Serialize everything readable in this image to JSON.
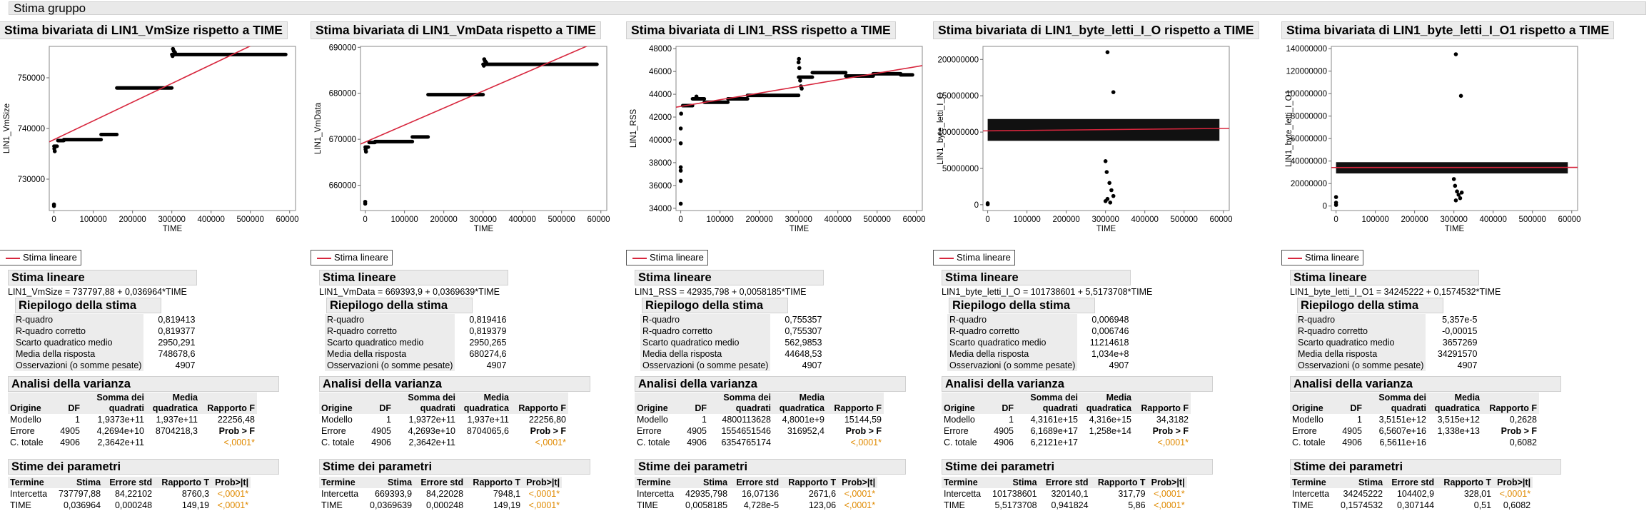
{
  "group_title": "Stima gruppo",
  "colors": {
    "fit_line": "#d7263d",
    "prob": "#e08a00",
    "header_bg": "#ececec"
  },
  "panels": [
    {
      "title": "Stima bivariata di LIN1_VmSize rispetto a TIME",
      "legend_label": "Stima lineare",
      "fit_section": "Stima lineare",
      "equation": "LIN1_VmSize = 737797,88 + 0,036964*TIME",
      "summary_title": "Riepilogo della stima",
      "summary": [
        {
          "label": "R-quadro",
          "value": "0,819413"
        },
        {
          "label": "R-quadro corretto",
          "value": "0,819377"
        },
        {
          "label": "Scarto quadratico medio",
          "value": "2950,291"
        },
        {
          "label": "Media della risposta",
          "value": "748678,6"
        },
        {
          "label": "Osservazioni (o somme pesate)",
          "value": "4907"
        }
      ],
      "anova_title": "Analisi della varianza",
      "anova_header": [
        "Origine",
        "DF",
        "Somma dei quadrati",
        "Media quadratica",
        "Rapporto F"
      ],
      "anova_rows": [
        [
          "Modello",
          "1",
          "1,9373e+11",
          "1,937e+11",
          "22256,48"
        ],
        [
          "Errore",
          "4905",
          "4,2694e+10",
          "8704218,3",
          "Prob > F"
        ],
        [
          "C. totale",
          "4906",
          "2,3642e+11",
          "",
          "<,0001*"
        ]
      ],
      "params_title": "Stime dei parametri",
      "params_header": [
        "Termine",
        "Stima",
        "Errore std",
        "Rapporto T",
        "Prob>|t|"
      ],
      "params_rows": [
        [
          "Intercetta",
          "737797,88",
          "84,22102",
          "8760,3",
          "<,0001*"
        ],
        [
          "TIME",
          "0,036964",
          "0,000248",
          "149,19",
          "<,0001*"
        ]
      ],
      "chart_data": {
        "type": "scatter",
        "xlabel": "TIME",
        "ylabel": "LIN1_VmSize",
        "xlim": [
          -12000,
          615000
        ],
        "ylim": [
          723800,
          756200
        ],
        "xticks": [
          0,
          100000,
          200000,
          300000,
          400000,
          500000,
          600000
        ],
        "yticks": [
          730000,
          740000,
          750000
        ],
        "ytick_labels": [
          "730000",
          "740000",
          "750000"
        ],
        "segments": [
          {
            "x0": 0,
            "x1": 8000,
            "y": 736500
          },
          {
            "x0": 10000,
            "x1": 25000,
            "y": 737600
          },
          {
            "x0": 25000,
            "x1": 120000,
            "y": 737800
          },
          {
            "x0": 120000,
            "x1": 160000,
            "y": 738800
          },
          {
            "x0": 160000,
            "x1": 300000,
            "y": 748000
          },
          {
            "x0": 300000,
            "x1": 590000,
            "y": 754600
          }
        ],
        "points": [
          [
            0,
            725000
          ],
          [
            0,
            724700
          ],
          [
            2000,
            735500
          ],
          [
            1000,
            736000
          ],
          [
            303000,
            755700
          ],
          [
            305000,
            755300
          ],
          [
            308000,
            755000
          ],
          [
            302000,
            754300
          ]
        ],
        "fit": {
          "intercept": 737797.88,
          "slope": 0.036964
        }
      }
    },
    {
      "title": "Stima bivariata di LIN1_VmData rispetto a TIME",
      "legend_label": "Stima lineare",
      "fit_section": "Stima lineare",
      "equation": "LIN1_VmData = 669393,9 + 0,0369639*TIME",
      "summary_title": "Riepilogo della stima",
      "summary": [
        {
          "label": "R-quadro",
          "value": "0,819416"
        },
        {
          "label": "R-quadro corretto",
          "value": "0,819379"
        },
        {
          "label": "Scarto quadratico medio",
          "value": "2950,265"
        },
        {
          "label": "Media della risposta",
          "value": "680274,6"
        },
        {
          "label": "Osservazioni (o somme pesate)",
          "value": "4907"
        }
      ],
      "anova_title": "Analisi della varianza",
      "anova_header": [
        "Origine",
        "DF",
        "Somma dei quadrati",
        "Media quadratica",
        "Rapporto F"
      ],
      "anova_rows": [
        [
          "Modello",
          "1",
          "1,9372e+11",
          "1,937e+11",
          "22256,80"
        ],
        [
          "Errore",
          "4905",
          "4,2693e+10",
          "8704065,6",
          "Prob > F"
        ],
        [
          "C. totale",
          "4906",
          "2,3642e+11",
          "",
          "<,0001*"
        ]
      ],
      "params_title": "Stime dei parametri",
      "params_header": [
        "Termine",
        "Stima",
        "Errore std",
        "Rapporto T",
        "Prob>|t|"
      ],
      "params_rows": [
        [
          "Intercetta",
          "669393,9",
          "84,22028",
          "7948,1",
          "<,0001*"
        ],
        [
          "TIME",
          "0,0369639",
          "0,000248",
          "149,19",
          "<,0001*"
        ]
      ],
      "chart_data": {
        "type": "scatter",
        "xlabel": "TIME",
        "ylabel": "LIN1_VmData",
        "xlim": [
          -12000,
          615000
        ],
        "ylim": [
          654500,
          690200
        ],
        "xticks": [
          0,
          100000,
          200000,
          300000,
          400000,
          500000,
          600000
        ],
        "yticks": [
          660000,
          670000,
          680000,
          690000
        ],
        "ytick_labels": [
          "660000",
          "670000",
          "680000",
          "690000"
        ],
        "segments": [
          {
            "x0": 0,
            "x1": 8000,
            "y": 668300
          },
          {
            "x0": 10000,
            "x1": 25000,
            "y": 669300
          },
          {
            "x0": 25000,
            "x1": 120000,
            "y": 669500
          },
          {
            "x0": 120000,
            "x1": 160000,
            "y": 670500
          },
          {
            "x0": 160000,
            "x1": 300000,
            "y": 679700
          },
          {
            "x0": 300000,
            "x1": 590000,
            "y": 686300
          }
        ],
        "points": [
          [
            0,
            656400
          ],
          [
            0,
            656000
          ],
          [
            2000,
            667300
          ],
          [
            1000,
            667800
          ],
          [
            303000,
            687400
          ],
          [
            305000,
            687000
          ],
          [
            308000,
            686700
          ],
          [
            302000,
            686000
          ]
        ],
        "fit": {
          "intercept": 669393.9,
          "slope": 0.0369639
        }
      }
    },
    {
      "title": "Stima bivariata di LIN1_RSS rispetto a TIME",
      "legend_label": "Stima lineare",
      "fit_section": "Stima lineare",
      "equation": "LIN1_RSS = 42935,798 + 0,0058185*TIME",
      "summary_title": "Riepilogo della stima",
      "summary": [
        {
          "label": "R-quadro",
          "value": "0,755357"
        },
        {
          "label": "R-quadro corretto",
          "value": "0,755307"
        },
        {
          "label": "Scarto quadratico medio",
          "value": "562,9853"
        },
        {
          "label": "Media della risposta",
          "value": "44648,53"
        },
        {
          "label": "Osservazioni (o somme pesate)",
          "value": "4907"
        }
      ],
      "anova_title": "Analisi della varianza",
      "anova_header": [
        "Origine",
        "DF",
        "Somma dei quadrati",
        "Media quadratica",
        "Rapporto F"
      ],
      "anova_rows": [
        [
          "Modello",
          "1",
          "4800113628",
          "4,8001e+9",
          "15144,59"
        ],
        [
          "Errore",
          "4905",
          "1554651546",
          "316952,4",
          "Prob > F"
        ],
        [
          "C. totale",
          "4906",
          "6354765174",
          "",
          "<,0001*"
        ]
      ],
      "params_title": "Stime dei parametri",
      "params_header": [
        "Termine",
        "Stima",
        "Errore std",
        "Rapporto T",
        "Prob>|t|"
      ],
      "params_rows": [
        [
          "Intercetta",
          "42935,798",
          "16,07136",
          "2671,6",
          "<,0001*"
        ],
        [
          "TIME",
          "0,0058185",
          "4,728e-5",
          "123,06",
          "<,0001*"
        ]
      ],
      "chart_data": {
        "type": "scatter",
        "xlabel": "TIME",
        "ylabel": "LIN1_RSS",
        "xlim": [
          -12000,
          615000
        ],
        "ylim": [
          33800,
          48200
        ],
        "xticks": [
          0,
          100000,
          200000,
          300000,
          400000,
          500000,
          600000
        ],
        "yticks": [
          34000,
          36000,
          38000,
          40000,
          42000,
          44000,
          46000,
          48000
        ],
        "ytick_labels": [
          "34000",
          "36000",
          "38000",
          "40000",
          "42000",
          "44000",
          "46000",
          "48000"
        ],
        "segments": [
          {
            "x0": 5000,
            "x1": 30000,
            "y": 43000
          },
          {
            "x0": 30000,
            "x1": 60000,
            "y": 43600
          },
          {
            "x0": 60000,
            "x1": 120000,
            "y": 43300
          },
          {
            "x0": 120000,
            "x1": 170000,
            "y": 43600
          },
          {
            "x0": 170000,
            "x1": 300000,
            "y": 43900
          },
          {
            "x0": 300000,
            "x1": 335000,
            "y": 45500
          },
          {
            "x0": 335000,
            "x1": 420000,
            "y": 45900
          },
          {
            "x0": 420000,
            "x1": 490000,
            "y": 45600
          },
          {
            "x0": 490000,
            "x1": 560000,
            "y": 45800
          },
          {
            "x0": 560000,
            "x1": 590000,
            "y": 45700
          }
        ],
        "points": [
          [
            0,
            34400
          ],
          [
            0,
            36400
          ],
          [
            0,
            37300
          ],
          [
            0,
            37600
          ],
          [
            0,
            39700
          ],
          [
            0,
            41000
          ],
          [
            1000,
            42300
          ],
          [
            40000,
            43800
          ],
          [
            300000,
            46800
          ],
          [
            302000,
            46300
          ],
          [
            304000,
            45200
          ],
          [
            306000,
            44700
          ],
          [
            308000,
            44500
          ],
          [
            301000,
            47100
          ]
        ],
        "fit": {
          "intercept": 42935.798,
          "slope": 0.0058185
        }
      }
    },
    {
      "title": "Stima bivariata di LIN1_byte_letti_I_O rispetto a TIME",
      "legend_label": "Stima lineare",
      "fit_section": "Stima lineare",
      "equation": "LIN1_byte_letti_I_O = 101738601 + 5,5173708*TIME",
      "summary_title": "Riepilogo della stima",
      "summary": [
        {
          "label": "R-quadro",
          "value": "0,006948"
        },
        {
          "label": "R-quadro corretto",
          "value": "0,006746"
        },
        {
          "label": "Scarto quadratico medio",
          "value": "11214618"
        },
        {
          "label": "Media della risposta",
          "value": "1,034e+8"
        },
        {
          "label": "Osservazioni (o somme pesate)",
          "value": "4907"
        }
      ],
      "anova_title": "Analisi della varianza",
      "anova_header": [
        "Origine",
        "DF",
        "Somma dei quadrati",
        "Media quadratica",
        "Rapporto F"
      ],
      "anova_rows": [
        [
          "Modello",
          "1",
          "4,3161e+15",
          "4,316e+15",
          "34,3182"
        ],
        [
          "Errore",
          "4905",
          "6,1689e+17",
          "1,258e+14",
          "Prob > F"
        ],
        [
          "C. totale",
          "4906",
          "6,2121e+17",
          "",
          "<,0001*"
        ]
      ],
      "params_title": "Stime dei parametri",
      "params_header": [
        "Termine",
        "Stima",
        "Errore std",
        "Rapporto T",
        "Prob>|t|"
      ],
      "params_rows": [
        [
          "Intercetta",
          "101738601",
          "320140,1",
          "317,79",
          "<,0001*"
        ],
        [
          "TIME",
          "5,5173708",
          "0,941824",
          "5,86",
          "<,0001*"
        ]
      ],
      "chart_data": {
        "type": "scatter",
        "xlabel": "TIME",
        "ylabel": "LIN1_byte_letti_I_O",
        "xlim": [
          -12000,
          615000
        ],
        "ylim": [
          -8000000,
          218000000
        ],
        "xticks": [
          0,
          100000,
          200000,
          300000,
          400000,
          500000,
          600000
        ],
        "yticks": [
          0,
          50000000,
          100000000,
          150000000,
          200000000
        ],
        "ytick_labels": [
          "0",
          "50000000",
          "100000000",
          "150000000",
          "200000000"
        ],
        "band": {
          "x0": 0,
          "x1": 590000,
          "y0": 88000000,
          "y1": 118000000
        },
        "points": [
          [
            0,
            2000000
          ],
          [
            0,
            500000
          ],
          [
            305000,
            210000000
          ],
          [
            320000,
            155000000
          ],
          [
            300000,
            60000000
          ],
          [
            303000,
            45000000
          ],
          [
            310000,
            30000000
          ],
          [
            315000,
            20000000
          ],
          [
            320000,
            12000000
          ],
          [
            305000,
            8000000
          ],
          [
            300000,
            5000000
          ],
          [
            312000,
            3000000
          ]
        ],
        "fit": {
          "intercept": 101738601,
          "slope": 5.5173708
        }
      }
    },
    {
      "title": "Stima bivariata di LIN1_byte_letti_I_O1 rispetto a TIME",
      "legend_label": "Stima lineare",
      "fit_section": "Stima lineare",
      "equation": "LIN1_byte_letti_I_O1 = 34245222 + 0,1574532*TIME",
      "summary_title": "Riepilogo della stima",
      "summary": [
        {
          "label": "R-quadro",
          "value": "5,357e-5"
        },
        {
          "label": "R-quadro corretto",
          "value": "-0,00015"
        },
        {
          "label": "Scarto quadratico medio",
          "value": "3657269"
        },
        {
          "label": "Media della risposta",
          "value": "34291570"
        },
        {
          "label": "Osservazioni (o somme pesate)",
          "value": "4907"
        }
      ],
      "anova_title": "Analisi della varianza",
      "anova_header": [
        "Origine",
        "DF",
        "Somma dei quadrati",
        "Media quadratica",
        "Rapporto F"
      ],
      "anova_rows": [
        [
          "Modello",
          "1",
          "3,5151e+12",
          "3,515e+12",
          "0,2628"
        ],
        [
          "Errore",
          "4905",
          "6,5607e+16",
          "1,338e+13",
          "Prob > F"
        ],
        [
          "C. totale",
          "4906",
          "6,5611e+16",
          "",
          "0,6082"
        ]
      ],
      "params_title": "Stime dei parametri",
      "params_header": [
        "Termine",
        "Stima",
        "Errore std",
        "Rapporto T",
        "Prob>|t|"
      ],
      "params_rows": [
        [
          "Intercetta",
          "34245222",
          "104402,9",
          "328,01",
          "<,0001*"
        ],
        [
          "TIME",
          "0,1574532",
          "0,307144",
          "0,51",
          "0,6082"
        ]
      ],
      "chart_data": {
        "type": "scatter",
        "xlabel": "TIME",
        "ylabel": "LIN1_byte_letti_I_O1",
        "xlim": [
          -12000,
          615000
        ],
        "ylim": [
          -4000000,
          142000000
        ],
        "xticks": [
          0,
          100000,
          200000,
          300000,
          400000,
          500000,
          600000
        ],
        "yticks": [
          0,
          20000000,
          40000000,
          60000000,
          80000000,
          100000000,
          120000000,
          140000000
        ],
        "ytick_labels": [
          "0",
          "20000000",
          "40000000",
          "60000000",
          "80000000",
          "100000000",
          "120000000",
          "140000000"
        ],
        "band": {
          "x0": 0,
          "x1": 590000,
          "y0": 29000000,
          "y1": 39000000
        },
        "points": [
          [
            0,
            8000000
          ],
          [
            0,
            3000000
          ],
          [
            0,
            1000000
          ],
          [
            305000,
            135000000
          ],
          [
            318000,
            98000000
          ],
          [
            300000,
            24000000
          ],
          [
            303000,
            18000000
          ],
          [
            308000,
            13000000
          ],
          [
            312000,
            10000000
          ],
          [
            316000,
            7000000
          ],
          [
            305000,
            5000000
          ],
          [
            320000,
            12000000
          ]
        ],
        "fit": {
          "intercept": 34245222,
          "slope": 0.1574532
        }
      }
    }
  ]
}
